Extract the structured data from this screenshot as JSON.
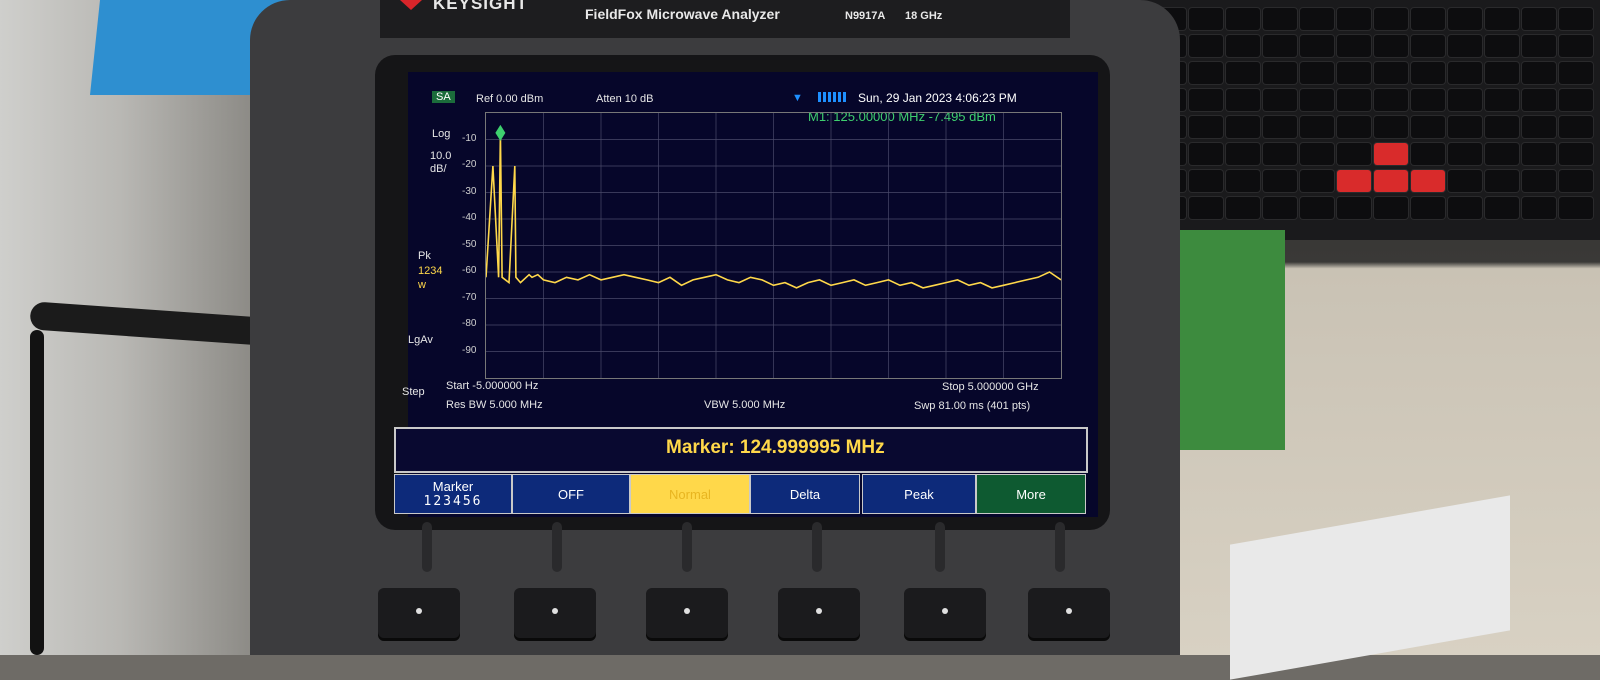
{
  "brand": {
    "name": "KEYSIGHT",
    "product": "FieldFox Microwave Analyzer",
    "model_number": "N9917A",
    "frequency": "18 GHz"
  },
  "screen": {
    "mode": "SA",
    "ref_level": "Ref 0.00 dBm",
    "atten": "Atten 10 dB",
    "datetime": "Sun, 29 Jan 2023 4:06:23 PM",
    "marker_readout": "M1: 125.00000 MHz -7.495 dBm",
    "scale_type": "Log",
    "scale_per_div": "10.0",
    "scale_unit": "dB/",
    "detector": "Pk",
    "trace_numbers": "1234",
    "trace_mode": "w",
    "averaging": "LgAv",
    "step_label": "Step",
    "start": "Start -5.000000  Hz",
    "stop": "Stop 5.000000 GHz",
    "res_bw": "Res BW 5.000 MHz",
    "vbw": "VBW 5.000 MHz",
    "sweep": "Swp 81.00 ms (401 pts)",
    "marker_bar": "Marker: 124.999995 MHz"
  },
  "softkeys": [
    {
      "label": "Marker",
      "sub": "123456"
    },
    {
      "label": "OFF"
    },
    {
      "label": "Normal"
    },
    {
      "label": "Delta"
    },
    {
      "label": "Peak"
    },
    {
      "label": "More"
    }
  ],
  "chart_data": {
    "type": "line",
    "title": "",
    "xlabel": "",
    "ylabel": "",
    "yticks": [
      "-10",
      "-20",
      "-30",
      "-40",
      "-50",
      "-60",
      "-70",
      "-80",
      "-90"
    ],
    "ylim": [
      -100,
      0
    ],
    "xlim": [
      0,
      5000
    ],
    "x_unit": "MHz",
    "series": [
      {
        "color": "#ffd84a",
        "x": [
          0,
          60,
          110,
          125,
          140,
          200,
          250,
          260,
          300,
          375,
          400,
          450,
          500,
          600,
          700,
          800,
          900,
          1000,
          1100,
          1200,
          1300,
          1400,
          1500,
          1600,
          1700,
          1800,
          1900,
          2000,
          2100,
          2200,
          2300,
          2400,
          2500,
          2600,
          2700,
          2800,
          2900,
          3000,
          3100,
          3200,
          3300,
          3400,
          3500,
          3600,
          3700,
          3800,
          3900,
          4000,
          4100,
          4200,
          4300,
          4400,
          4500,
          4600,
          4700,
          4800,
          4900,
          5000
        ],
        "y": [
          -62,
          -20,
          -62,
          -7.5,
          -62,
          -64,
          -20,
          -62,
          -64,
          -61,
          -62,
          -61,
          -63,
          -64,
          -62,
          -63,
          -61,
          -63,
          -62,
          -61,
          -62,
          -63,
          -64,
          -62,
          -65,
          -63,
          -62,
          -61,
          -63,
          -64,
          -62,
          -63,
          -65,
          -64,
          -66,
          -64,
          -63,
          -65,
          -64,
          -63,
          -65,
          -64,
          -63,
          -65,
          -64,
          -66,
          -65,
          -64,
          -63,
          -65,
          -64,
          -66,
          -65,
          -64,
          -63,
          -62,
          -60,
          -63
        ]
      }
    ],
    "marker": {
      "x": 125,
      "y": -7.495
    },
    "grid": true
  }
}
